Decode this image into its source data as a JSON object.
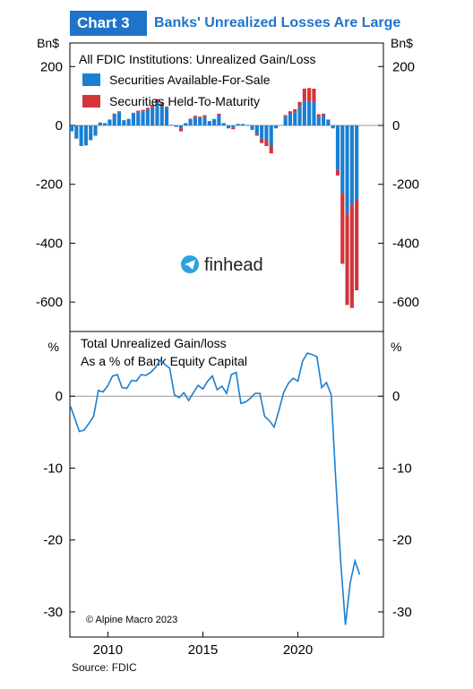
{
  "header": {
    "chart_label": "Chart 3",
    "title": "Banks' Unrealized Losses Are Large"
  },
  "source": "Source: FDIC",
  "copyright": "© Alpine Macro 2023",
  "watermark": "finhead",
  "colors": {
    "accent": "#1f74c9",
    "afs": "#1a7fd2",
    "htm": "#d3343a",
    "line": "#1a7fd2",
    "axis": "#000000",
    "zero_line": "#999999"
  },
  "chart_data": [
    {
      "type": "bar",
      "title": "All FDIC Institutions: Unrealized Gain/Loss",
      "ylabel_left": "Bn$",
      "ylabel_right": "Bn$",
      "ylim": [
        -700,
        280
      ],
      "yticks": [
        200,
        0,
        -200,
        -400,
        -600
      ],
      "stacked": true,
      "legend_position": "top-left",
      "x_quarters_start": 2008.0,
      "x": [
        2008.0,
        2008.25,
        2008.5,
        2008.75,
        2009.0,
        2009.25,
        2009.5,
        2009.75,
        2010.0,
        2010.25,
        2010.5,
        2010.75,
        2011.0,
        2011.25,
        2011.5,
        2011.75,
        2012.0,
        2012.25,
        2012.5,
        2012.75,
        2013.0,
        2013.25,
        2013.5,
        2013.75,
        2014.0,
        2014.25,
        2014.5,
        2014.75,
        2015.0,
        2015.25,
        2015.5,
        2015.75,
        2016.0,
        2016.25,
        2016.5,
        2016.75,
        2017.0,
        2017.25,
        2017.5,
        2017.75,
        2018.0,
        2018.25,
        2018.5,
        2018.75,
        2019.0,
        2019.25,
        2019.5,
        2019.75,
        2020.0,
        2020.25,
        2020.5,
        2020.75,
        2021.0,
        2021.25,
        2021.5,
        2021.75,
        2022.0,
        2022.25,
        2022.5,
        2022.75,
        2023.0
      ],
      "series": [
        {
          "name": "Securities Available-For-Sale",
          "values": [
            -20,
            -45,
            -70,
            -68,
            -50,
            -35,
            10,
            8,
            20,
            38,
            45,
            18,
            22,
            40,
            45,
            48,
            55,
            62,
            80,
            70,
            60,
            2,
            -5,
            -10,
            8,
            20,
            28,
            25,
            30,
            15,
            22,
            35,
            8,
            -10,
            -8,
            5,
            5,
            2,
            -15,
            -30,
            -45,
            -50,
            -70,
            -10,
            0,
            30,
            40,
            45,
            65,
            85,
            82,
            80,
            28,
            35,
            20,
            -10,
            -150,
            -230,
            -300,
            -270,
            -250
          ]
        },
        {
          "name": "Securities Held-To-Maturity",
          "values": [
            0,
            0,
            0,
            0,
            0,
            0,
            0,
            0,
            0,
            2,
            3,
            0,
            0,
            3,
            5,
            5,
            5,
            8,
            10,
            6,
            4,
            0,
            0,
            -10,
            0,
            3,
            5,
            5,
            5,
            0,
            0,
            5,
            0,
            0,
            -5,
            0,
            0,
            0,
            0,
            -5,
            -15,
            -20,
            -25,
            0,
            0,
            5,
            8,
            10,
            15,
            40,
            45,
            45,
            10,
            5,
            0,
            0,
            -20,
            -240,
            -310,
            -350,
            -310
          ]
        }
      ]
    },
    {
      "type": "line",
      "title_lines": [
        "Total Unrealized Gain/loss",
        "As a % of Bank Equity Capital"
      ],
      "ylabel_left": "%",
      "ylabel_right": "%",
      "ylim": [
        -33.5,
        9
      ],
      "yticks": [
        0,
        -10,
        -20,
        -30
      ],
      "xticks": [
        2010,
        2015,
        2020
      ],
      "xlim": [
        2008,
        2024.5
      ],
      "grid": false,
      "series": [
        {
          "name": "",
          "x": [
            2008.0,
            2008.25,
            2008.5,
            2008.75,
            2009.0,
            2009.25,
            2009.5,
            2009.75,
            2010.0,
            2010.25,
            2010.5,
            2010.75,
            2011.0,
            2011.25,
            2011.5,
            2011.75,
            2012.0,
            2012.25,
            2012.5,
            2012.75,
            2013.0,
            2013.25,
            2013.5,
            2013.75,
            2014.0,
            2014.25,
            2014.5,
            2014.75,
            2015.0,
            2015.25,
            2015.5,
            2015.75,
            2016.0,
            2016.25,
            2016.5,
            2016.75,
            2017.0,
            2017.25,
            2017.5,
            2017.75,
            2018.0,
            2018.25,
            2018.5,
            2018.75,
            2019.0,
            2019.25,
            2019.5,
            2019.75,
            2020.0,
            2020.25,
            2020.5,
            2020.75,
            2021.0,
            2021.25,
            2021.5,
            2021.75,
            2022.0,
            2022.25,
            2022.5,
            2022.75,
            2023.0,
            2023.25
          ],
          "y": [
            -1.2,
            -3.0,
            -4.9,
            -4.7,
            -3.8,
            -2.8,
            0.8,
            0.6,
            1.5,
            2.8,
            3.0,
            1.2,
            1.1,
            2.2,
            2.1,
            3.0,
            2.9,
            3.3,
            4.0,
            5.0,
            4.4,
            3.9,
            0.2,
            -0.2,
            0.5,
            -0.6,
            0.5,
            1.5,
            1.0,
            2.1,
            2.8,
            0.9,
            1.4,
            0.4,
            3.0,
            3.3,
            -1.0,
            -0.8,
            -0.3,
            0.4,
            0.4,
            -2.8,
            -3.4,
            -4.3,
            -2.0,
            0.5,
            1.8,
            2.5,
            2.1,
            4.9,
            6.0,
            5.8,
            5.5,
            1.2,
            1.9,
            0.2,
            -12.0,
            -23.0,
            -31.8,
            -26.0,
            -22.9,
            -24.8
          ]
        }
      ]
    }
  ]
}
